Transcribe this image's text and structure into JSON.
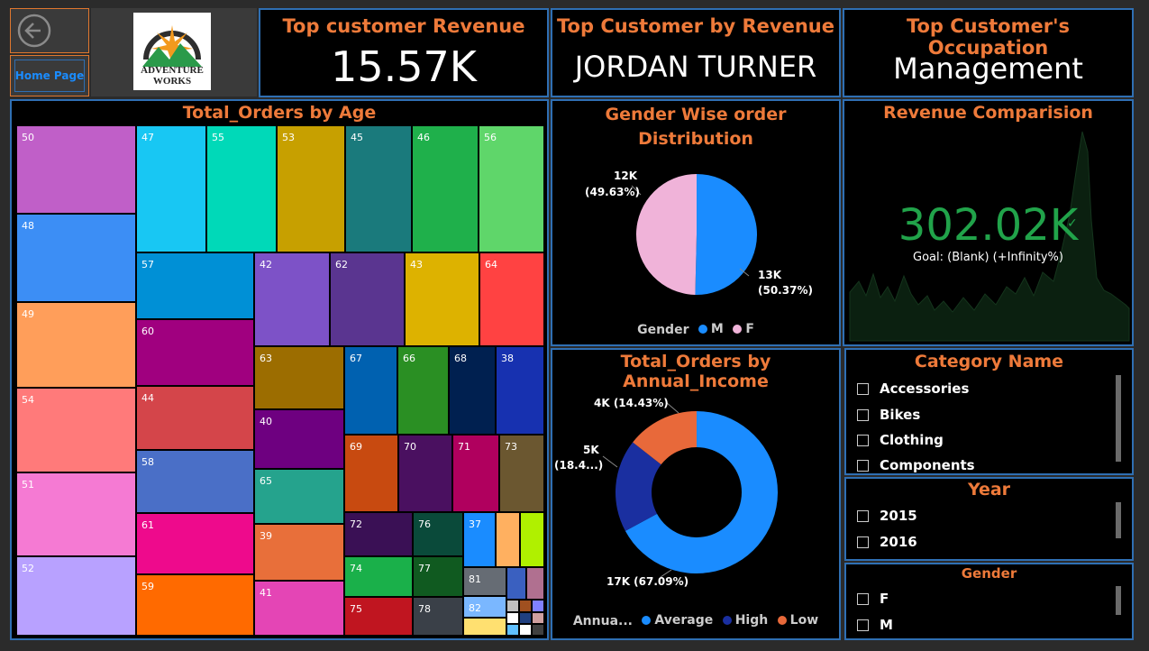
{
  "nav": {
    "back_icon": "back-arrow-icon",
    "home_label": "Home Page"
  },
  "logo": {
    "text_line1": "ADVENTURE",
    "text_line2": "WORKS"
  },
  "cards": [
    {
      "title": "Top customer Revenue",
      "value": "15.57K"
    },
    {
      "title": "Top Customer by Revenue",
      "value": "JORDAN TURNER"
    },
    {
      "title": "Top Customer's Occupation",
      "value": "Management"
    }
  ],
  "treemap": {
    "title": "Total_Orders by Age",
    "tiles": [
      {
        "label": "50",
        "color": "#c05fc8"
      },
      {
        "label": "48",
        "color": "#3c8ef5"
      },
      {
        "label": "49",
        "color": "#ff9e5a"
      },
      {
        "label": "54",
        "color": "#ff7a7a"
      },
      {
        "label": "51",
        "color": "#f57ad3"
      },
      {
        "label": "52",
        "color": "#b8a1ff"
      },
      {
        "label": "47",
        "color": "#18c7f3"
      },
      {
        "label": "55",
        "color": "#00d9b8"
      },
      {
        "label": "53",
        "color": "#c7a000"
      },
      {
        "label": "45",
        "color": "#1a7a7c"
      },
      {
        "label": "46",
        "color": "#1fb04b"
      },
      {
        "label": "56",
        "color": "#5fd66a"
      },
      {
        "label": "57",
        "color": "#0090d6"
      },
      {
        "label": "60",
        "color": "#a0007f"
      },
      {
        "label": "44",
        "color": "#d4454a"
      },
      {
        "label": "58",
        "color": "#4a6fc7"
      },
      {
        "label": "61",
        "color": "#ee0a8c"
      },
      {
        "label": "59",
        "color": "#ff6a00"
      },
      {
        "label": "42",
        "color": "#7d52c7"
      },
      {
        "label": "62",
        "color": "#5a3590"
      },
      {
        "label": "43",
        "color": "#ddb200"
      },
      {
        "label": "64",
        "color": "#ff4242"
      },
      {
        "label": "63",
        "color": "#9c6d00"
      },
      {
        "label": "40",
        "color": "#6e0080"
      },
      {
        "label": "65",
        "color": "#25a38d"
      },
      {
        "label": "39",
        "color": "#e86f3a"
      },
      {
        "label": "41",
        "color": "#e445b5"
      },
      {
        "label": "67",
        "color": "#0061b0"
      },
      {
        "label": "66",
        "color": "#2a8f23"
      },
      {
        "label": "68",
        "color": "#002050"
      },
      {
        "label": "38",
        "color": "#1731b0"
      },
      {
        "label": "69",
        "color": "#c84a10"
      },
      {
        "label": "70",
        "color": "#4a1060"
      },
      {
        "label": "71",
        "color": "#b0005e"
      },
      {
        "label": "73",
        "color": "#6b5730"
      },
      {
        "label": "72",
        "color": "#3a1055"
      },
      {
        "label": "76",
        "color": "#0a4a3a"
      },
      {
        "label": "37",
        "color": "#1a8cff"
      },
      {
        "label": "74",
        "color": "#1ab04a"
      },
      {
        "label": "77",
        "color": "#105a20"
      },
      {
        "label": "75",
        "color": "#c01520"
      },
      {
        "label": "78",
        "color": "#3a4048"
      },
      {
        "label": "81",
        "color": "#666c74"
      },
      {
        "label": "82",
        "color": "#7ab7ff"
      }
    ]
  },
  "gender_pie": {
    "title": "Gender Wise order Distribution",
    "label_f": "12K",
    "label_f_pct": "(49.63%)",
    "label_m": "13K",
    "label_m_pct": "(50.37%)",
    "legend_title": "Gender",
    "legend": [
      {
        "name": "M",
        "color": "#1a8cff"
      },
      {
        "name": "F",
        "color": "#f0b3d9"
      }
    ]
  },
  "revenue": {
    "title": "Revenue Comparision",
    "value": "302.02K",
    "goal": "Goal: (Blank) (+Infinity%)",
    "value_color": "#21a34a"
  },
  "income_donut": {
    "title": "Total_Orders by Annual_Income",
    "label_low": "4K (14.43%)",
    "label_high_1": "5K",
    "label_high_2": "(18.4...)",
    "label_avg": "17K (67.09%)",
    "legend_title": "Annua...",
    "legend": [
      {
        "name": "Average",
        "color": "#1a8cff"
      },
      {
        "name": "High",
        "color": "#1a2fa0"
      },
      {
        "name": "Low",
        "color": "#e8693a"
      }
    ]
  },
  "slicers": {
    "category": {
      "title": "Category Name",
      "items": [
        "Accessories",
        "Bikes",
        "Clothing",
        "Components"
      ]
    },
    "year": {
      "title": "Year",
      "items": [
        "2015",
        "2016"
      ]
    },
    "gender": {
      "title": "Gender",
      "items": [
        "F",
        "M"
      ]
    }
  },
  "chart_data": [
    {
      "type": "pie",
      "title": "Gender Wise order Distribution",
      "categories": [
        "M",
        "F"
      ],
      "values": [
        50.37,
        49.63
      ],
      "labels": [
        "13K",
        "12K"
      ]
    },
    {
      "type": "pie",
      "title": "Total_Orders by Annual_Income",
      "categories": [
        "Average",
        "High",
        "Low"
      ],
      "values": [
        67.09,
        18.48,
        14.43
      ],
      "labels": [
        "17K",
        "5K",
        "4K"
      ]
    }
  ]
}
